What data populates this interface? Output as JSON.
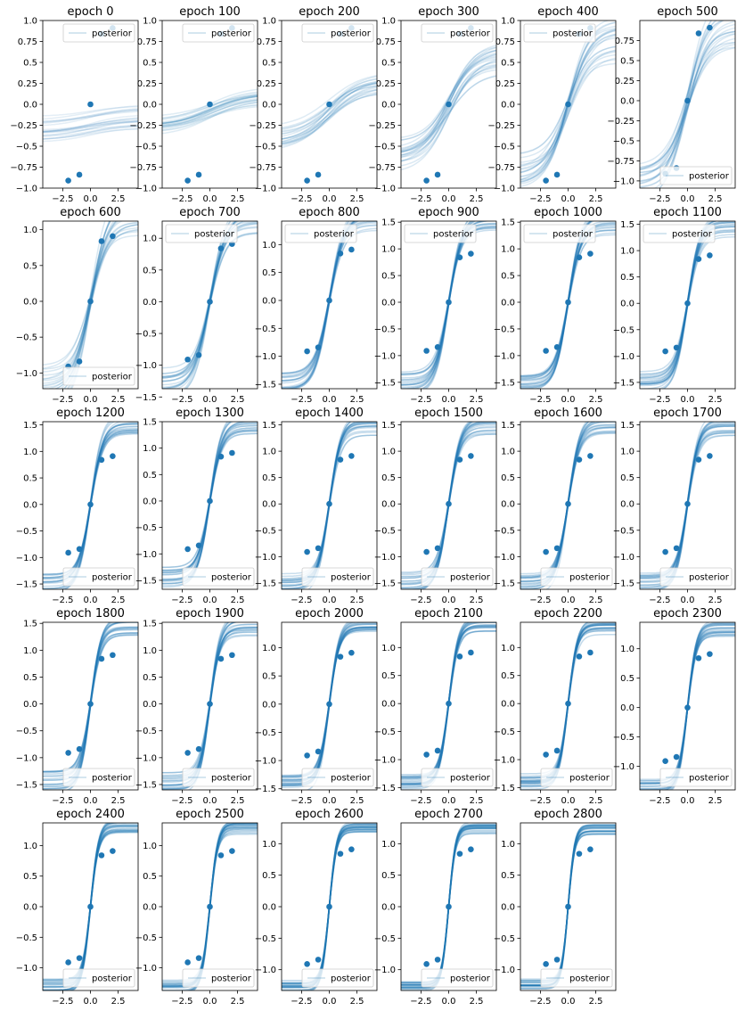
{
  "figure": {
    "background": "#ffffff",
    "line_color": "#1f77b4",
    "observed_points": [
      {
        "x": -2.0,
        "y": -0.91
      },
      {
        "x": -1.0,
        "y": -0.84
      },
      {
        "x": 0.0,
        "y": 0.0
      },
      {
        "x": 1.0,
        "y": 0.84
      },
      {
        "x": 2.0,
        "y": 0.91
      }
    ]
  },
  "chart_data": [
    {
      "type": "line",
      "title": "epoch 0",
      "legend": "posterior",
      "legend_loc": "upper right",
      "xlim": [
        -4.3,
        4.3
      ],
      "ylim": [
        -1.0,
        1.0
      ],
      "xticks": [
        -2.5,
        0.0,
        2.5
      ],
      "yticks": [
        -1.0,
        -0.75,
        -0.5,
        -0.25,
        0.0,
        0.25,
        0.5,
        0.75,
        1.0
      ],
      "posterior": {
        "mean_amplitude": 0.08,
        "mean_offset": -0.22,
        "slope": 0.3,
        "spread": 0.12,
        "opacity": 0.12
      }
    },
    {
      "type": "line",
      "title": "epoch 100",
      "legend": "posterior",
      "legend_loc": "upper right",
      "xlim": [
        -4.3,
        4.3
      ],
      "ylim": [
        -1.0,
        1.0
      ],
      "xticks": [
        -2.5,
        0.0,
        2.5
      ],
      "yticks": [
        -1.0,
        -0.75,
        -0.5,
        -0.25,
        0.0,
        0.25,
        0.5,
        0.75,
        1.0
      ],
      "posterior": {
        "mean_amplitude": 0.18,
        "mean_offset": -0.1,
        "slope": 0.3,
        "spread": 0.07,
        "opacity": 0.14
      }
    },
    {
      "type": "line",
      "title": "epoch 200",
      "legend": "posterior",
      "legend_loc": "upper right",
      "xlim": [
        -4.3,
        4.3
      ],
      "ylim": [
        -1.0,
        1.0
      ],
      "xticks": [
        -2.5,
        0.0,
        2.5
      ],
      "yticks": [
        -1.0,
        -0.75,
        -0.5,
        -0.25,
        0.0,
        0.25,
        0.5,
        0.75,
        1.0
      ],
      "posterior": {
        "mean_amplitude": 0.35,
        "mean_offset": -0.06,
        "slope": 0.35,
        "spread": 0.08,
        "opacity": 0.15
      }
    },
    {
      "type": "line",
      "title": "epoch 300",
      "legend": "posterior",
      "legend_loc": "upper right",
      "xlim": [
        -4.3,
        4.3
      ],
      "ylim": [
        -1.0,
        1.0
      ],
      "xticks": [
        -2.5,
        0.0,
        2.5
      ],
      "yticks": [
        -1.0,
        -0.75,
        -0.5,
        -0.25,
        0.0,
        0.25,
        0.5,
        0.75,
        1.0
      ],
      "posterior": {
        "mean_amplitude": 0.56,
        "mean_offset": -0.02,
        "slope": 0.42,
        "spread": 0.08,
        "opacity": 0.16
      }
    },
    {
      "type": "line",
      "title": "epoch 400",
      "legend": "posterior",
      "legend_loc": "upper left",
      "xlim": [
        -4.3,
        4.3
      ],
      "ylim": [
        -1.0,
        1.0
      ],
      "xticks": [
        -2.5,
        0.0,
        2.5
      ],
      "yticks": [
        -1.0,
        -0.75,
        -0.5,
        -0.25,
        0.0,
        0.25,
        0.5,
        0.75,
        1.0
      ],
      "posterior": {
        "mean_amplitude": 0.8,
        "mean_offset": -0.02,
        "slope": 0.5,
        "spread": 0.08,
        "opacity": 0.16
      }
    },
    {
      "type": "line",
      "title": "epoch 500",
      "legend": "posterior",
      "legend_loc": "lower right",
      "xlim": [
        -4.3,
        4.3
      ],
      "ylim": [
        -1.09,
        1.0
      ],
      "xticks": [
        -2.5,
        0.0,
        2.5
      ],
      "yticks": [
        -1.0,
        -0.75,
        -0.5,
        -0.25,
        0.0,
        0.25,
        0.5,
        0.75
      ],
      "posterior": {
        "mean_amplitude": 1.0,
        "mean_offset": 0.0,
        "slope": 0.55,
        "spread": 0.08,
        "opacity": 0.16
      }
    },
    {
      "type": "line",
      "title": "epoch 600",
      "legend": "posterior",
      "legend_loc": "lower right",
      "xlim": [
        -4.3,
        4.3
      ],
      "ylim": [
        -1.22,
        1.12
      ],
      "xticks": [
        -2.5,
        0.0,
        2.5
      ],
      "yticks": [
        -1.0,
        -0.5,
        0.0,
        0.5,
        1.0
      ],
      "posterior": {
        "mean_amplitude": 1.2,
        "mean_offset": 0.0,
        "slope": 0.62,
        "spread": 0.07,
        "opacity": 0.17
      }
    },
    {
      "type": "line",
      "title": "epoch 700",
      "legend": "posterior",
      "legend_loc": "upper left",
      "xlim": [
        -4.3,
        4.3
      ],
      "ylim": [
        -1.37,
        1.27
      ],
      "xticks": [
        -2.5,
        0.0,
        2.5
      ],
      "yticks": [
        -1.5,
        -1.0,
        -0.5,
        0.0,
        0.5,
        1.0
      ],
      "posterior": {
        "mean_amplitude": 1.3,
        "mean_offset": 0.0,
        "slope": 0.7,
        "spread": 0.05,
        "opacity": 0.2
      }
    },
    {
      "type": "line",
      "title": "epoch 800",
      "legend": "posterior",
      "legend_loc": "upper left",
      "xlim": [
        -4.3,
        4.3
      ],
      "ylim": [
        -1.58,
        1.42
      ],
      "xticks": [
        -2.5,
        0.0,
        2.5
      ],
      "yticks": [
        -1.5,
        -1.0,
        -0.5,
        0.0,
        0.5,
        1.0
      ],
      "posterior": {
        "mean_amplitude": 1.45,
        "mean_offset": 0.0,
        "slope": 0.75,
        "spread": 0.04,
        "opacity": 0.22
      }
    },
    {
      "type": "line",
      "title": "epoch 900",
      "legend": "posterior",
      "legend_loc": "upper left",
      "xlim": [
        -4.3,
        4.3
      ],
      "ylim": [
        -1.62,
        1.52
      ],
      "xticks": [
        -2.5,
        0.0,
        2.5
      ],
      "yticks": [
        -1.5,
        -1.0,
        -0.5,
        0.0,
        0.5,
        1.0,
        1.5
      ],
      "posterior": {
        "mean_amplitude": 1.5,
        "mean_offset": 0.0,
        "slope": 0.82,
        "spread": 0.04,
        "opacity": 0.24
      }
    },
    {
      "type": "line",
      "title": "epoch 1000",
      "legend": "posterior",
      "legend_loc": "upper left",
      "xlim": [
        -4.3,
        4.3
      ],
      "ylim": [
        -1.62,
        1.52
      ],
      "xticks": [
        -2.5,
        0.0,
        2.5
      ],
      "yticks": [
        -1.5,
        -1.0,
        -0.5,
        0.0,
        0.5,
        1.0,
        1.5
      ],
      "posterior": {
        "mean_amplitude": 1.5,
        "mean_offset": 0.0,
        "slope": 0.85,
        "spread": 0.04,
        "opacity": 0.24
      }
    },
    {
      "type": "line",
      "title": "epoch 1100",
      "legend": "posterior",
      "legend_loc": "upper left",
      "xlim": [
        -4.3,
        4.3
      ],
      "ylim": [
        -1.62,
        1.56
      ],
      "xticks": [
        -2.5,
        0.0,
        2.5
      ],
      "yticks": [
        -1.5,
        -1.0,
        -0.5,
        0.0,
        0.5,
        1.0,
        1.5
      ],
      "posterior": {
        "mean_amplitude": 1.5,
        "mean_offset": 0.0,
        "slope": 0.9,
        "spread": 0.04,
        "opacity": 0.24
      }
    },
    {
      "type": "line",
      "title": "epoch 1200",
      "legend": "posterior",
      "legend_loc": "lower right",
      "xlim": [
        -4.3,
        4.3
      ],
      "ylim": [
        -1.6,
        1.56
      ],
      "xticks": [
        -2.5,
        0.0,
        2.5
      ],
      "yticks": [
        -1.5,
        -1.0,
        -0.5,
        0.0,
        0.5,
        1.0,
        1.5
      ],
      "posterior": {
        "mean_amplitude": 1.5,
        "mean_offset": 0.0,
        "slope": 0.9,
        "spread": 0.04,
        "opacity": 0.24
      }
    },
    {
      "type": "line",
      "title": "epoch 1300",
      "legend": "posterior",
      "legend_loc": "lower right",
      "xlim": [
        -4.3,
        4.3
      ],
      "ylim": [
        -1.67,
        1.5
      ],
      "xticks": [
        -2.5,
        0.0,
        2.5
      ],
      "yticks": [
        -1.5,
        -1.0,
        -0.5,
        0.0,
        0.5,
        1.0,
        1.5
      ],
      "posterior": {
        "mean_amplitude": 1.45,
        "mean_offset": 0.0,
        "slope": 0.92,
        "spread": 0.04,
        "opacity": 0.24
      }
    },
    {
      "type": "line",
      "title": "epoch 1400",
      "legend": "posterior",
      "legend_loc": "lower right",
      "xlim": [
        -4.3,
        4.3
      ],
      "ylim": [
        -1.62,
        1.56
      ],
      "xticks": [
        -2.5,
        0.0,
        2.5
      ],
      "yticks": [
        -1.5,
        -1.0,
        -0.5,
        0.0,
        0.5,
        1.0,
        1.5
      ],
      "posterior": {
        "mean_amplitude": 1.5,
        "mean_offset": 0.0,
        "slope": 0.95,
        "spread": 0.04,
        "opacity": 0.24
      }
    },
    {
      "type": "line",
      "title": "epoch 1500",
      "legend": "posterior",
      "legend_loc": "lower right",
      "xlim": [
        -4.3,
        4.3
      ],
      "ylim": [
        -1.62,
        1.56
      ],
      "xticks": [
        -2.5,
        0.0,
        2.5
      ],
      "yticks": [
        -1.5,
        -1.0,
        -0.5,
        0.0,
        0.5,
        1.0,
        1.5
      ],
      "posterior": {
        "mean_amplitude": 1.5,
        "mean_offset": 0.0,
        "slope": 0.95,
        "spread": 0.04,
        "opacity": 0.24
      }
    },
    {
      "type": "line",
      "title": "epoch 1600",
      "legend": "posterior",
      "legend_loc": "lower right",
      "xlim": [
        -4.3,
        4.3
      ],
      "ylim": [
        -1.62,
        1.56
      ],
      "xticks": [
        -2.5,
        0.0,
        2.5
      ],
      "yticks": [
        -1.5,
        -1.0,
        -0.5,
        0.0,
        0.5,
        1.0,
        1.5
      ],
      "posterior": {
        "mean_amplitude": 1.5,
        "mean_offset": 0.0,
        "slope": 0.95,
        "spread": 0.04,
        "opacity": 0.24
      }
    },
    {
      "type": "line",
      "title": "epoch 1700",
      "legend": "posterior",
      "legend_loc": "lower right",
      "xlim": [
        -4.3,
        4.3
      ],
      "ylim": [
        -1.62,
        1.56
      ],
      "xticks": [
        -2.5,
        0.0,
        2.5
      ],
      "yticks": [
        -1.5,
        -1.0,
        -0.5,
        0.0,
        0.5,
        1.0,
        1.5
      ],
      "posterior": {
        "mean_amplitude": 1.5,
        "mean_offset": 0.0,
        "slope": 1.0,
        "spread": 0.04,
        "opacity": 0.24
      }
    },
    {
      "type": "line",
      "title": "epoch 1800",
      "legend": "posterior",
      "legend_loc": "lower right",
      "xlim": [
        -4.3,
        4.3
      ],
      "ylim": [
        -1.6,
        1.52
      ],
      "xticks": [
        -2.5,
        0.0,
        2.5
      ],
      "yticks": [
        -1.5,
        -1.0,
        -0.5,
        0.0,
        0.5,
        1.0,
        1.5
      ],
      "posterior": {
        "mean_amplitude": 1.45,
        "mean_offset": 0.0,
        "slope": 1.05,
        "spread": 0.04,
        "opacity": 0.26
      }
    },
    {
      "type": "line",
      "title": "epoch 1900",
      "legend": "posterior",
      "legend_loc": "lower right",
      "xlim": [
        -4.3,
        4.3
      ],
      "ylim": [
        -1.6,
        1.52
      ],
      "xticks": [
        -2.5,
        0.0,
        2.5
      ],
      "yticks": [
        -1.5,
        -1.0,
        -0.5,
        0.0,
        0.5,
        1.0,
        1.5
      ],
      "posterior": {
        "mean_amplitude": 1.45,
        "mean_offset": 0.0,
        "slope": 1.05,
        "spread": 0.04,
        "opacity": 0.26
      }
    },
    {
      "type": "line",
      "title": "epoch 2000",
      "legend": "posterior",
      "legend_loc": "lower right",
      "xlim": [
        -4.3,
        4.3
      ],
      "ylim": [
        -1.52,
        1.45
      ],
      "xticks": [
        -2.5,
        0.0,
        2.5
      ],
      "yticks": [
        -1.5,
        -1.0,
        -0.5,
        0.0,
        0.5,
        1.0
      ],
      "posterior": {
        "mean_amplitude": 1.4,
        "mean_offset": 0.0,
        "slope": 1.1,
        "spread": 0.03,
        "opacity": 0.28
      }
    },
    {
      "type": "line",
      "title": "epoch 2100",
      "legend": "posterior",
      "legend_loc": "lower right",
      "xlim": [
        -4.3,
        4.3
      ],
      "ylim": [
        -1.54,
        1.45
      ],
      "xticks": [
        -2.5,
        0.0,
        2.5
      ],
      "yticks": [
        -1.5,
        -1.0,
        -0.5,
        0.0,
        0.5,
        1.0
      ],
      "posterior": {
        "mean_amplitude": 1.4,
        "mean_offset": 0.0,
        "slope": 1.15,
        "spread": 0.03,
        "opacity": 0.28
      }
    },
    {
      "type": "line",
      "title": "epoch 2200",
      "legend": "posterior",
      "legend_loc": "lower right",
      "xlim": [
        -4.3,
        4.3
      ],
      "ylim": [
        -1.54,
        1.45
      ],
      "xticks": [
        -2.5,
        0.0,
        2.5
      ],
      "yticks": [
        -1.5,
        -1.0,
        -0.5,
        0.0,
        0.5,
        1.0
      ],
      "posterior": {
        "mean_amplitude": 1.4,
        "mean_offset": 0.0,
        "slope": 1.2,
        "spread": 0.03,
        "opacity": 0.28
      }
    },
    {
      "type": "line",
      "title": "epoch 2300",
      "legend": "posterior",
      "legend_loc": "lower right",
      "xlim": [
        -4.3,
        4.3
      ],
      "ylim": [
        -1.4,
        1.45
      ],
      "xticks": [
        -2.5,
        0.0,
        2.5
      ],
      "yticks": [
        -1.0,
        -0.5,
        0.0,
        0.5,
        1.0
      ],
      "posterior": {
        "mean_amplitude": 1.35,
        "mean_offset": 0.0,
        "slope": 1.25,
        "spread": 0.03,
        "opacity": 0.28
      }
    },
    {
      "type": "line",
      "title": "epoch 2400",
      "legend": "posterior",
      "legend_loc": "lower right",
      "xlim": [
        -4.3,
        4.3
      ],
      "ylim": [
        -1.37,
        1.37
      ],
      "xticks": [
        -2.5,
        0.0,
        2.5
      ],
      "yticks": [
        -1.0,
        -0.5,
        0.0,
        0.5,
        1.0
      ],
      "posterior": {
        "mean_amplitude": 1.3,
        "mean_offset": 0.0,
        "slope": 1.35,
        "spread": 0.025,
        "opacity": 0.3
      }
    },
    {
      "type": "line",
      "title": "epoch 2500",
      "legend": "posterior",
      "legend_loc": "lower right",
      "xlim": [
        -4.3,
        4.3
      ],
      "ylim": [
        -1.37,
        1.37
      ],
      "xticks": [
        -2.5,
        0.0,
        2.5
      ],
      "yticks": [
        -1.0,
        -0.5,
        0.0,
        0.5,
        1.0
      ],
      "posterior": {
        "mean_amplitude": 1.3,
        "mean_offset": 0.0,
        "slope": 1.4,
        "spread": 0.025,
        "opacity": 0.3
      }
    },
    {
      "type": "line",
      "title": "epoch 2600",
      "legend": "posterior",
      "legend_loc": "lower right",
      "xlim": [
        -4.3,
        4.3
      ],
      "ylim": [
        -1.33,
        1.33
      ],
      "xticks": [
        -2.5,
        0.0,
        2.5
      ],
      "yticks": [
        -1.0,
        -0.5,
        0.0,
        0.5,
        1.0
      ],
      "posterior": {
        "mean_amplitude": 1.27,
        "mean_offset": 0.0,
        "slope": 1.5,
        "spread": 0.02,
        "opacity": 0.3
      }
    },
    {
      "type": "line",
      "title": "epoch 2700",
      "legend": "posterior",
      "legend_loc": "lower right",
      "xlim": [
        -4.3,
        4.3
      ],
      "ylim": [
        -1.33,
        1.33
      ],
      "xticks": [
        -2.5,
        0.0,
        2.5
      ],
      "yticks": [
        -1.0,
        -0.5,
        0.0,
        0.5,
        1.0
      ],
      "posterior": {
        "mean_amplitude": 1.25,
        "mean_offset": 0.0,
        "slope": 1.6,
        "spread": 0.02,
        "opacity": 0.3
      }
    },
    {
      "type": "line",
      "title": "epoch 2800",
      "legend": "posterior",
      "legend_loc": "lower right",
      "xlim": [
        -4.3,
        4.3
      ],
      "ylim": [
        -1.33,
        1.33
      ],
      "xticks": [
        -2.5,
        0.0,
        2.5
      ],
      "yticks": [
        -1.0,
        -0.5,
        0.0,
        0.5,
        1.0
      ],
      "posterior": {
        "mean_amplitude": 1.22,
        "mean_offset": 0.0,
        "slope": 1.7,
        "spread": 0.02,
        "opacity": 0.3
      }
    }
  ]
}
